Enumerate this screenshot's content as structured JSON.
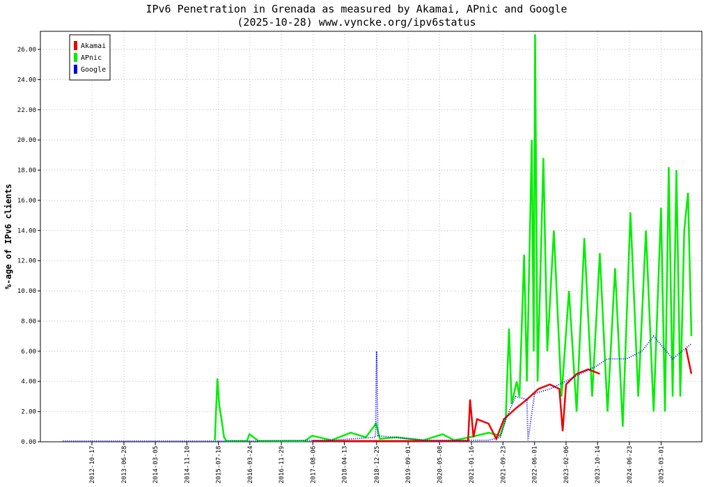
{
  "chart_data": {
    "type": "line",
    "title": "IPv6 Penetration in Grenada as measured by Akamai, APnic and Google",
    "subtitle": "(2025-10-28) www.vyncke.org/ipv6status",
    "y_label": "%-age of IPv6 clients",
    "xlim": [
      "2011-09-04",
      "2026-01-19"
    ],
    "xticks": [
      "2012-10-17",
      "2013-06-28",
      "2014-03-05",
      "2014-11-10",
      "2015-07-18",
      "2016-03-24",
      "2016-11-29",
      "2017-08-06",
      "2018-04-13",
      "2018-12-25",
      "2019-09-01",
      "2020-05-08",
      "2021-01-16",
      "2021-09-23",
      "2022-06-01",
      "2023-02-06",
      "2023-10-14",
      "2024-06-23",
      "2025-03-01"
    ],
    "ylim": [
      0,
      27.2
    ],
    "yticks": [
      {
        "value": 0,
        "label": "0.00"
      },
      {
        "value": 2,
        "label": "2.00"
      },
      {
        "value": 4,
        "label": "4.00"
      },
      {
        "value": 6,
        "label": "6.00"
      },
      {
        "value": 8,
        "label": "8.00"
      },
      {
        "value": 10,
        "label": "10.00"
      },
      {
        "value": 12,
        "label": "12.00"
      },
      {
        "value": 14,
        "label": "14.00"
      },
      {
        "value": 16,
        "label": "16.00"
      },
      {
        "value": 18,
        "label": "18.00"
      },
      {
        "value": 20,
        "label": "20.00"
      },
      {
        "value": 22,
        "label": "22.00"
      },
      {
        "value": 24,
        "label": "24.00"
      },
      {
        "value": 26,
        "label": "26.00"
      }
    ],
    "grid": true,
    "legend": "upper left",
    "series": [
      {
        "name": "APnic",
        "color": "#00ee00",
        "dashed": false,
        "x": [
          "2015-06-20",
          "2015-07-10",
          "2015-07-25",
          "2015-08-10",
          "2015-09-01",
          "2015-09-20",
          "2016-03-01",
          "2016-03-20",
          "2016-06-01",
          "2017-06-01",
          "2017-08-01",
          "2018-01-01",
          "2018-06-01",
          "2018-10-01",
          "2018-12-20",
          "2019-01-20",
          "2019-06-01",
          "2020-01-01",
          "2020-06-01",
          "2020-09-01",
          "2021-01-01",
          "2021-06-01",
          "2021-09-01",
          "2021-10-15",
          "2021-11-10",
          "2021-12-01",
          "2022-01-10",
          "2022-02-01",
          "2022-03-10",
          "2022-04-01",
          "2022-05-10",
          "2022-05-25",
          "2022-06-05",
          "2022-06-25",
          "2022-08-10",
          "2022-09-10",
          "2022-11-01",
          "2023-01-01",
          "2023-03-01",
          "2023-05-01",
          "2023-07-01",
          "2023-09-01",
          "2023-11-01",
          "2024-01-01",
          "2024-03-01",
          "2024-05-01",
          "2024-07-01",
          "2024-09-01",
          "2024-11-01",
          "2025-01-01",
          "2025-03-01",
          "2025-04-01",
          "2025-05-01",
          "2025-06-01",
          "2025-07-01",
          "2025-08-01",
          "2025-09-01",
          "2025-10-01",
          "2025-10-28"
        ],
        "values": [
          0.1,
          4.2,
          2.4,
          1.6,
          0.3,
          0.05,
          0.05,
          0.5,
          0.05,
          0.05,
          0.4,
          0.1,
          0.6,
          0.3,
          1.2,
          0.2,
          0.3,
          0.1,
          0.5,
          0.1,
          0.3,
          0.6,
          0.4,
          1.5,
          7.5,
          2.5,
          4.0,
          3.0,
          12.4,
          4.0,
          20.0,
          6.0,
          27.0,
          4.0,
          18.8,
          6.0,
          14.0,
          3.0,
          10.0,
          2.0,
          13.5,
          3.0,
          12.5,
          2.0,
          11.5,
          1.0,
          15.2,
          3.0,
          14.0,
          2.0,
          15.5,
          2.0,
          18.2,
          3.0,
          18.0,
          3.0,
          14.0,
          16.5,
          7.0
        ]
      },
      {
        "name": "Akamai",
        "color": "#ee0000",
        "dashed": false,
        "x": [
          "2017-08-01",
          "2020-12-20",
          "2021-01-05",
          "2021-02-01",
          "2021-03-01",
          "2021-06-01",
          "2021-08-01",
          "2021-10-01",
          "2022-01-01",
          "2022-04-01",
          "2022-07-01",
          "2022-10-01",
          "2022-12-15",
          "2023-01-10",
          "2023-02-06",
          "2023-05-01",
          "2023-08-01",
          "2023-11-01",
          "2025-08-20",
          "2025-09-15",
          "2025-10-28"
        ],
        "values": [
          0.05,
          0.05,
          2.8,
          0.3,
          1.5,
          1.2,
          0.2,
          1.5,
          2.2,
          2.8,
          3.5,
          3.8,
          3.5,
          0.7,
          3.8,
          4.5,
          4.8,
          4.5,
          null,
          6.2,
          4.5
        ]
      },
      {
        "name": "Google",
        "color": "#0000ee",
        "dashed": true,
        "x": [
          "2012-03-01",
          "2014-01-01",
          "2016-01-01",
          "2018-01-01",
          "2018-12-15",
          "2018-12-25",
          "2019-01-05",
          "2020-01-01",
          "2021-06-01",
          "2021-09-01",
          "2021-10-15",
          "2022-01-01",
          "2022-04-01",
          "2022-04-10",
          "2022-06-01",
          "2022-10-01",
          "2023-02-01",
          "2023-06-01",
          "2023-10-01",
          "2024-01-01",
          "2024-06-01",
          "2024-10-01",
          "2025-01-01",
          "2025-06-01",
          "2025-10-28"
        ],
        "values": [
          0.05,
          0.05,
          0.05,
          0.1,
          0.3,
          6.0,
          0.4,
          0.1,
          0.1,
          0.3,
          1.5,
          3.0,
          2.8,
          0.1,
          3.2,
          3.5,
          4.0,
          4.5,
          5.0,
          5.5,
          5.5,
          6.0,
          7.0,
          5.5,
          6.5
        ]
      }
    ]
  }
}
